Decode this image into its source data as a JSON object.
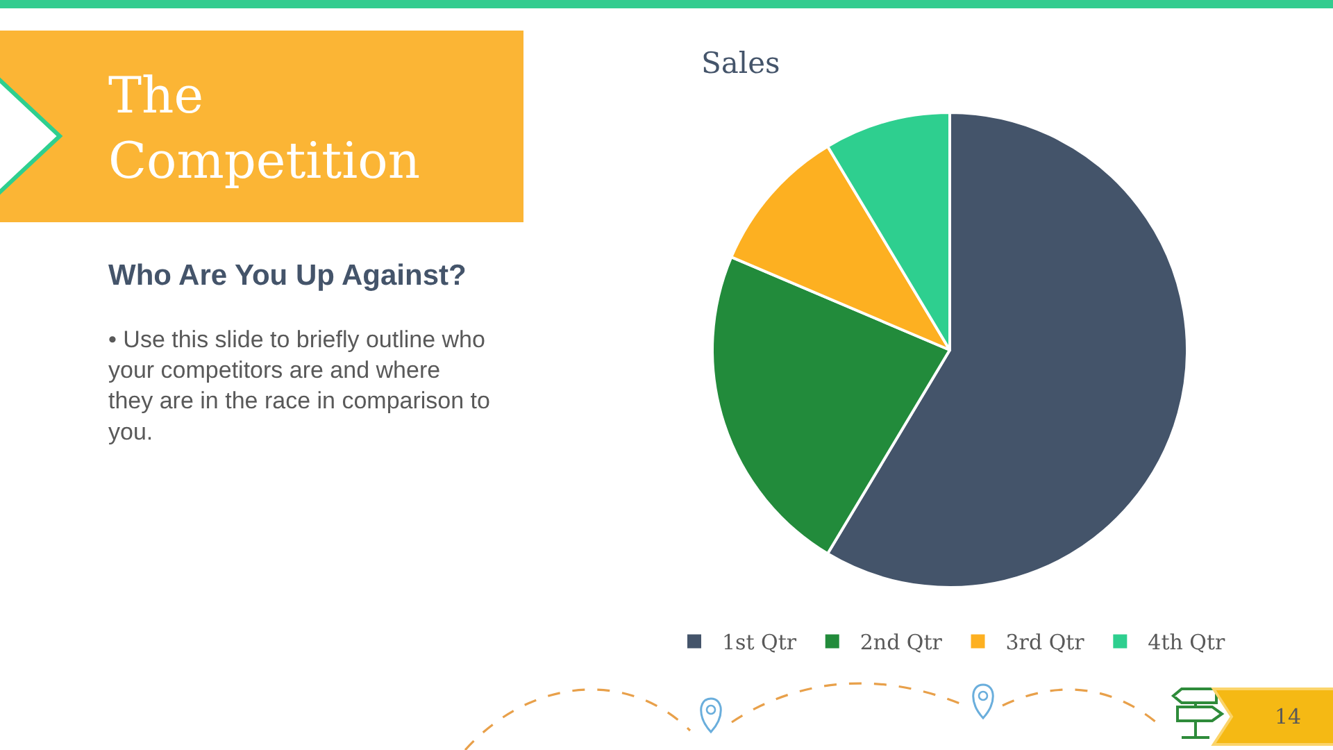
{
  "chart_data": {
    "type": "pie",
    "title": "Sales",
    "categories": [
      "1st Qtr",
      "2nd Qtr",
      "3rd Qtr",
      "4th Qtr"
    ],
    "values": [
      58.6,
      22.8,
      10.0,
      8.6
    ],
    "colors": [
      "#44546a",
      "#228b3b",
      "#fdb021",
      "#2ecf8f"
    ],
    "legend": "bottom",
    "annotations": [
      "The\nCompetition",
      "Who Are You Up Against?",
      "• Use this slide to briefly outline who\nyour competitors are and where\nthey are in the race in comparison to\nyou.",
      "14"
    ]
  }
}
